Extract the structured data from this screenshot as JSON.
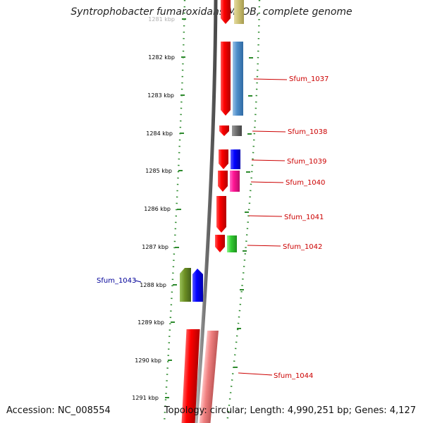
{
  "title": "Syntrophobacter fumaroxidans MPOB, complete genome",
  "footer": {
    "accession": "Accession: NC_008554",
    "summary": "Topology: circular; Length: 4,990,251 bp; Genes: 4,127"
  },
  "colors": {
    "backbone": "#808080",
    "tick_green": "#2e8b2e",
    "ruler_label": "#000000",
    "gene_label_red": "#cc0000",
    "gene_label_blue": "#000099"
  },
  "ruler": {
    "unit": "kbp",
    "labels": [
      "1281 kbp",
      "1282 kbp",
      "1283 kbp",
      "1284 kbp",
      "1285 kbp",
      "1286 kbp",
      "1287 kbp",
      "1288 kbp",
      "1289 kbp",
      "1290 kbp",
      "1291 kbp"
    ]
  },
  "genes": [
    {
      "name": "Sfum_1037",
      "strand": "forward",
      "start_kbp": 1281.55,
      "end_kbp": 1283.55,
      "label_color": "red"
    },
    {
      "name": "Sfum_1038",
      "strand": "forward",
      "start_kbp": 1283.8,
      "end_kbp": 1284.1,
      "label_color": "red"
    },
    {
      "name": "Sfum_1039",
      "strand": "forward",
      "start_kbp": 1284.45,
      "end_kbp": 1284.95,
      "label_color": "red"
    },
    {
      "name": "Sfum_1040",
      "strand": "forward",
      "start_kbp": 1285.0,
      "end_kbp": 1285.6,
      "label_color": "red"
    },
    {
      "name": "Sfum_1041",
      "strand": "forward",
      "start_kbp": 1285.7,
      "end_kbp": 1286.65,
      "label_color": "red"
    },
    {
      "name": "Sfum_1042",
      "strand": "forward",
      "start_kbp": 1286.7,
      "end_kbp": 1287.15,
      "label_color": "red"
    },
    {
      "name": "Sfum_1043",
      "strand": "reverse",
      "start_kbp": 1287.5,
      "end_kbp": 1288.45,
      "label_color": "blue"
    },
    {
      "name": "Sfum_1044",
      "strand": "forward",
      "start_kbp": 1289.2,
      "end_kbp": 1291.2,
      "label_color": "red"
    }
  ]
}
